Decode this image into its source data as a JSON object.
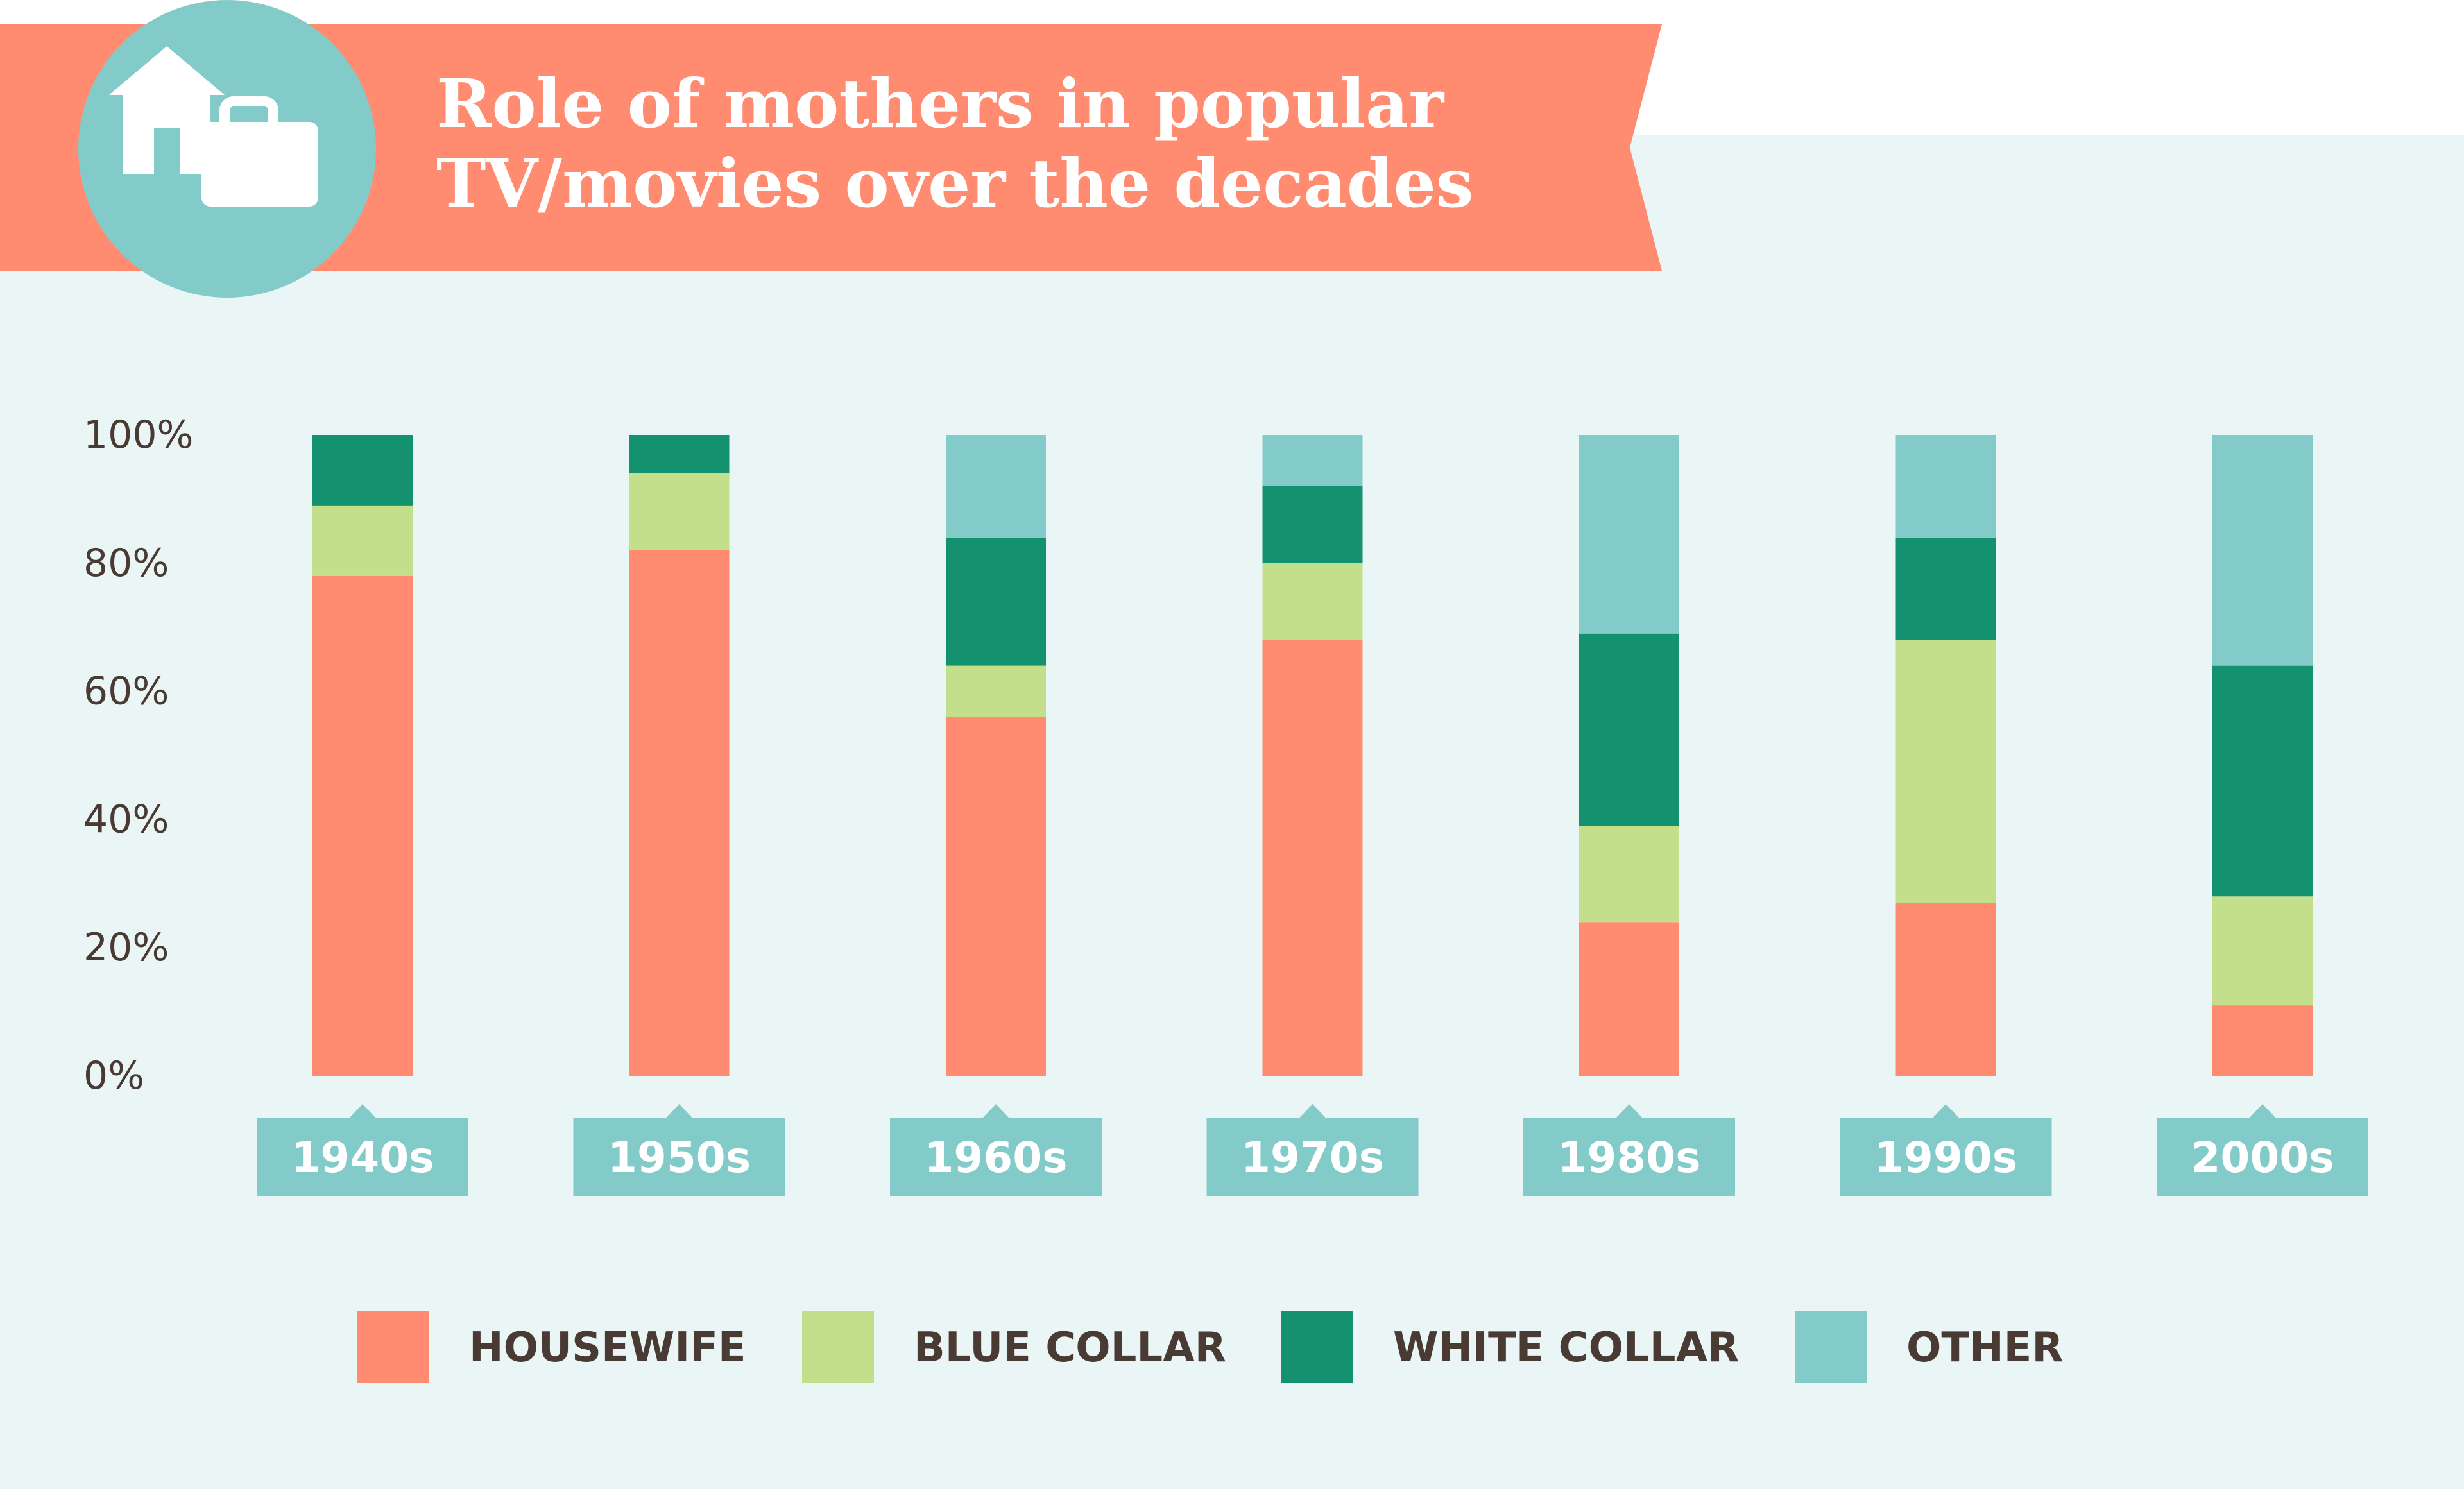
{
  "title": "Role of mothers in popular\nTV/movies over the decades",
  "colors": {
    "banner": "#ff8c70",
    "panel": "#eaf6f5",
    "icon_circle": "#83cbc9",
    "text_dark": "#4a3a34"
  },
  "icons": [
    "house-icon",
    "briefcase-icon"
  ],
  "chart_data": {
    "type": "bar",
    "stacked": true,
    "categories": [
      "1940s",
      "1950s",
      "1960s",
      "1970s",
      "1980s",
      "1990s",
      "2000s"
    ],
    "y_ticks": [
      "0%",
      "20%",
      "40%",
      "60%",
      "80%",
      "100%"
    ],
    "ylim": [
      0,
      100
    ],
    "grid": false,
    "legend": "bottom",
    "series": [
      {
        "name": "HOUSEWIFE",
        "color": "#ff8c70",
        "values": [
          78,
          82,
          56,
          68,
          24,
          27,
          11
        ]
      },
      {
        "name": "BLUE COLLAR",
        "color": "#c4df8c",
        "values": [
          11,
          12,
          8,
          12,
          15,
          41,
          17
        ]
      },
      {
        "name": "WHITE COLLAR",
        "color": "#14916f",
        "values": [
          11,
          6,
          20,
          12,
          30,
          16,
          36
        ]
      },
      {
        "name": "OTHER",
        "color": "#83cbc9",
        "values": [
          0,
          0,
          16,
          8,
          31,
          16,
          36
        ]
      }
    ]
  }
}
